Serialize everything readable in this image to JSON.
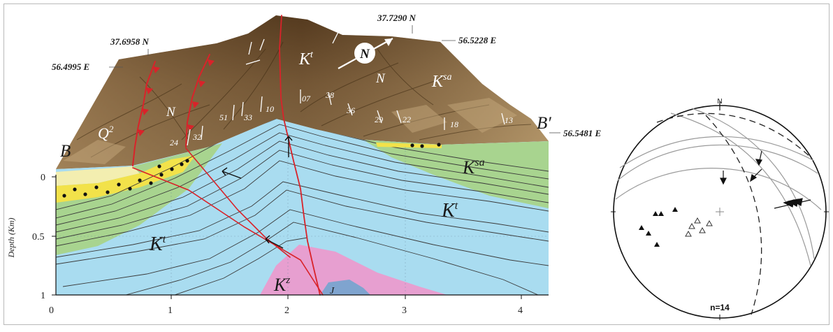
{
  "cross_section": {
    "section_start": "B",
    "section_end": "B′",
    "coordinates": {
      "lat_west": "37.6958 N",
      "lon_west": "56.4995 E",
      "lat_east": "37.7290 N",
      "lon_east_top": "56.5228 E",
      "lon_east_right": "56.5481 E"
    },
    "north_label": "N",
    "depth_axis_title": "Depth (Km)",
    "depth_ticks": [
      "0",
      "0.5",
      "1"
    ],
    "distance_ticks": [
      "0",
      "1",
      "2",
      "3",
      "4"
    ],
    "units": {
      "Q2": {
        "base": "Q",
        "sup": "2"
      },
      "Kt_top": {
        "base": "K",
        "sup": "t"
      },
      "Ksa_top": {
        "base": "K",
        "sup": "sa"
      },
      "Ksa_section": {
        "base": "K",
        "sup": "sa"
      },
      "Kt_east": {
        "base": "K",
        "sup": "t"
      },
      "Kt_west": {
        "base": "K",
        "sup": "t"
      },
      "Kz": {
        "base": "K",
        "sup": "z"
      },
      "J": "J",
      "N_left": "N",
      "N_right": "N"
    },
    "dips": [
      "24",
      "32",
      "51",
      "33",
      "10",
      "07",
      "38",
      "36",
      "29",
      "22",
      "18",
      "13"
    ],
    "colors": {
      "alluvium_yellow": "#f2e24a",
      "pale_band": "#f3eeb0",
      "Ksa_green": "#a8d48f",
      "Kt_blue": "#a9dcf0",
      "Kz_pink": "#e79fd0",
      "J_blue": "#7fa4cf",
      "fault_red": "#d9232a",
      "terrain_brown": "#8a6a45"
    }
  },
  "stereonet": {
    "north_label": "N",
    "count_label": "n=14"
  }
}
